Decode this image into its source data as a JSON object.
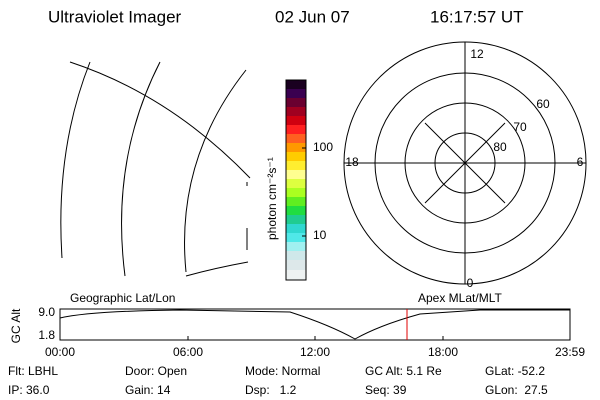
{
  "header": {
    "title": "Ultraviolet Imager",
    "date": "02 Jun 07",
    "time": "16:17:57 UT"
  },
  "colorbar": {
    "label": "photon cm⁻²s⁻¹",
    "ticks": [
      "100",
      "10"
    ]
  },
  "polar": {
    "mlt_labels": [
      "12",
      "18",
      "6",
      "0"
    ],
    "lat_labels": [
      "60",
      "70",
      "80"
    ]
  },
  "timeline": {
    "left_label": "Geographic Lat/Lon",
    "right_label": "Apex MLat/MLT",
    "y_label": "GC Alt",
    "y_ticks": [
      "9.0",
      "1.8"
    ],
    "x_ticks": [
      "00:00",
      "06:00",
      "12:00",
      "18:00",
      "23:59"
    ]
  },
  "info": {
    "rows": [
      [
        "Flt: LBHL",
        "Door: Open",
        "Mode: Normal",
        "GC Alt: 5.1 Re",
        "GLat: -52.2"
      ],
      [
        "IP: 36.0",
        "Gain: 14",
        "Dsp:   1.2",
        "Seq: 39",
        "GLon:  27.5"
      ]
    ]
  }
}
